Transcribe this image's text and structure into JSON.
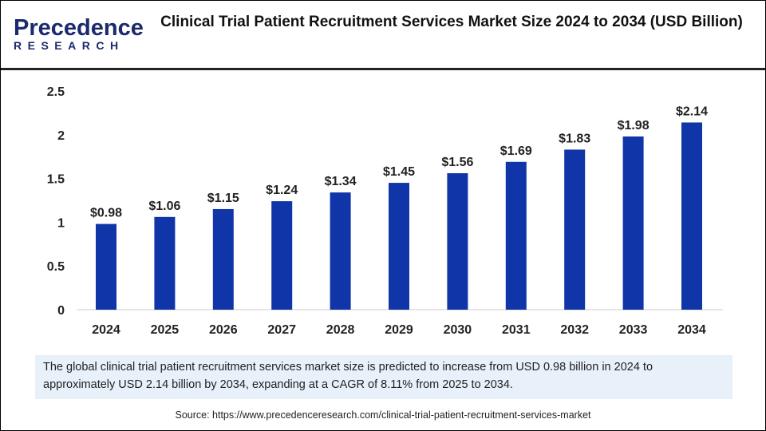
{
  "logo": {
    "line1": "Precedence",
    "line2": "RESEARCH"
  },
  "title": "Clinical Trial Patient Recruitment Services Market Size 2024 to 2034 (USD Billion)",
  "note": "The global clinical trial patient recruitment services market size is predicted to increase from USD 0.98 billion in 2024 to approximately USD 2.14 billion by 2034, expanding at a CAGR of 8.11% from 2025 to 2034.",
  "source": "Source: https://www.precedenceresearch.com/clinical-trial-patient-recruitment-services-market",
  "chart_data": {
    "type": "bar",
    "categories": [
      "2024",
      "2025",
      "2026",
      "2027",
      "2028",
      "2029",
      "2030",
      "2031",
      "2032",
      "2033",
      "2034"
    ],
    "values": [
      0.98,
      1.06,
      1.15,
      1.24,
      1.34,
      1.45,
      1.56,
      1.69,
      1.83,
      1.98,
      2.14
    ],
    "data_labels": [
      "$0.98",
      "$1.06",
      "$1.15",
      "$1.24",
      "$1.34",
      "$1.45",
      "$1.56",
      "$1.69",
      "$1.83",
      "$1.98",
      "$2.14"
    ],
    "yticks": [
      "0",
      "0.5",
      "1",
      "1.5",
      "2",
      "2.5"
    ],
    "ylim": [
      0,
      2.5
    ],
    "grid": false,
    "bar_color": "#0f35a8"
  }
}
